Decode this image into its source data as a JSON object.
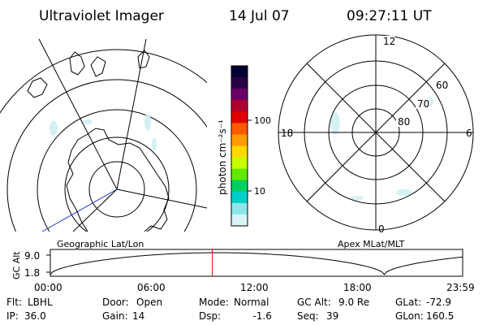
{
  "header": {
    "instrument": "Ultraviolet Imager",
    "date": "14 Jul 07",
    "time": "09:27:11 UT"
  },
  "left_panel": {
    "caption": "Geographic Lat/Lon"
  },
  "right_panel": {
    "caption": "Apex MLat/MLT",
    "mlt_labels": {
      "top": "12",
      "left": "18",
      "right": "6",
      "bottom": "0"
    },
    "lat_labels": [
      "60",
      "70",
      "80"
    ]
  },
  "colorbar": {
    "unit_label": "photon cm⁻²s⁻¹",
    "ticks": [
      "100",
      "10"
    ],
    "colors": [
      "#000033",
      "#2a0044",
      "#6a0066",
      "#b00030",
      "#e00000",
      "#ff5a00",
      "#ff9a00",
      "#ffd800",
      "#c8ff00",
      "#60e800",
      "#00d060",
      "#00d0c8",
      "#8fe6ea",
      "#d8f4f6"
    ]
  },
  "timeline": {
    "y_label": "GC Alt",
    "y_ticks": [
      "9.0",
      "1.8"
    ],
    "x_ticks": [
      "00:00",
      "06:00",
      "12:00",
      "18:00",
      "23:59"
    ],
    "current_time_fraction": 0.393,
    "line_color": "#000000",
    "marker_color": "#e00000"
  },
  "status": {
    "row1": [
      {
        "label": "Flt:",
        "value": "LBHL"
      },
      {
        "label": "Door:",
        "value": "Open"
      },
      {
        "label": "Mode:",
        "value": "Normal"
      },
      {
        "label": "GC Alt:",
        "value": "9.0 Re"
      },
      {
        "label": "GLat:",
        "value": "-72.9"
      }
    ],
    "row2": [
      {
        "label": "IP:",
        "value": "36.0"
      },
      {
        "label": "Gain:",
        "value": "14"
      },
      {
        "label": "Dsp:",
        "value": "   -1.6"
      },
      {
        "label": "Seq:",
        "value": "39"
      },
      {
        "label": "GLon:",
        "value": "160.5"
      }
    ]
  }
}
